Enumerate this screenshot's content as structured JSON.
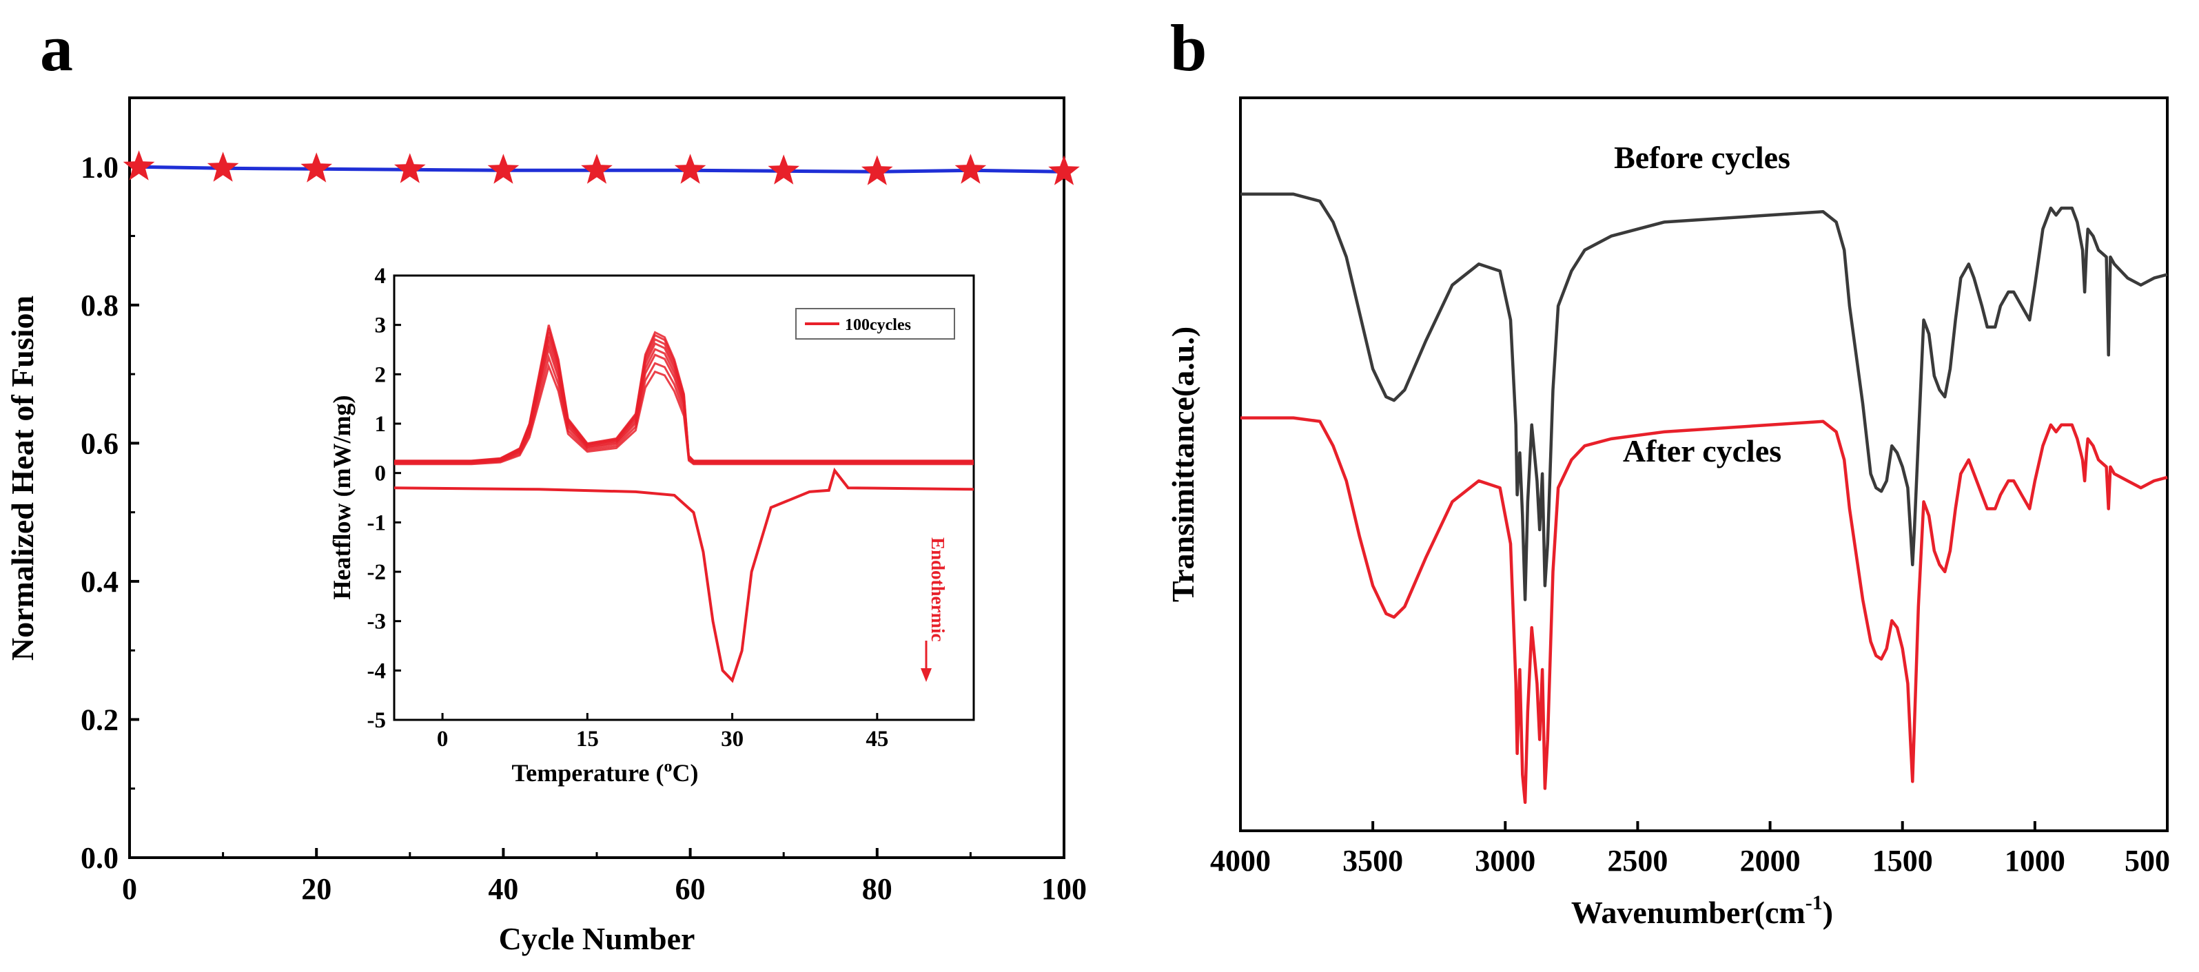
{
  "chart_data": [
    {
      "panel": "a",
      "type": "line",
      "xlabel": "Cycle Number",
      "ylabel": "Normalized Heat of Fusion",
      "xlim": [
        0,
        100
      ],
      "ylim": [
        0,
        1.1
      ],
      "xticks": [
        "0",
        "20",
        "40",
        "60",
        "80",
        "100"
      ],
      "yticks": [
        "0.0",
        "0.2",
        "0.4",
        "0.6",
        "0.8",
        "1.0"
      ],
      "series": [
        {
          "name": "normalized heat of fusion",
          "x": [
            1,
            10,
            20,
            30,
            40,
            50,
            60,
            70,
            80,
            90,
            100
          ],
          "values": [
            1.0,
            0.998,
            0.997,
            0.996,
            0.995,
            0.995,
            0.995,
            0.994,
            0.993,
            0.995,
            0.993
          ],
          "line_color": "#1f2fd6",
          "marker_color": "#e8202a"
        }
      ],
      "inset": {
        "type": "line",
        "xlabel": "Temperature",
        "xlabel_unit": "C",
        "xlabel_sup": "o",
        "ylabel": "Heatflow (mW/mg)",
        "xlim": [
          -5,
          55
        ],
        "ylim": [
          -5,
          4
        ],
        "xticks": [
          "0",
          "15",
          "30",
          "45"
        ],
        "yticks": [
          "-5",
          "-4",
          "-3",
          "-2",
          "-1",
          "0",
          "1",
          "2",
          "3",
          "4"
        ],
        "legend": "100cycles",
        "annotation": "Endothermic",
        "color": "#e8202a",
        "cooling": {
          "x": [
            -5,
            3,
            6,
            8,
            9,
            10,
            11,
            12,
            13,
            15,
            18,
            20,
            21,
            22,
            23,
            24,
            25,
            25.5,
            26,
            55
          ],
          "values": [
            0.25,
            0.25,
            0.3,
            0.5,
            1.0,
            2.0,
            3.0,
            2.3,
            1.1,
            0.6,
            0.7,
            1.2,
            2.4,
            2.85,
            2.75,
            2.3,
            1.6,
            0.35,
            0.25,
            0.25
          ]
        },
        "heating": {
          "x": [
            -5,
            10,
            20,
            24,
            26,
            27,
            28,
            29,
            30,
            31,
            32,
            34,
            38,
            40,
            40.6,
            42,
            55
          ],
          "values": [
            -0.3,
            -0.33,
            -0.38,
            -0.45,
            -0.8,
            -1.6,
            -3.0,
            -4.0,
            -4.2,
            -3.6,
            -2.0,
            -0.7,
            -0.38,
            -0.35,
            0.05,
            -0.3,
            -0.33
          ]
        }
      }
    },
    {
      "panel": "b",
      "type": "line",
      "xlabel": "Wavenumber(cm",
      "xlabel_sup": "-1",
      "xlabel_close": ")",
      "ylabel": "Transimittance(a.u.)",
      "xlim": [
        4000,
        500
      ],
      "xticks": [
        "4000",
        "3500",
        "3000",
        "2500",
        "2000",
        "1500",
        "1000",
        "500"
      ],
      "series": [
        {
          "name": "Before cycles",
          "color": "#3a3a3a",
          "x": [
            4000,
            3800,
            3700,
            3650,
            3600,
            3550,
            3500,
            3450,
            3420,
            3380,
            3300,
            3200,
            3100,
            3020,
            2980,
            2960,
            2955,
            2945,
            2935,
            2925,
            2915,
            2900,
            2880,
            2870,
            2860,
            2850,
            2840,
            2820,
            2800,
            2750,
            2700,
            2600,
            2400,
            2000,
            1800,
            1750,
            1720,
            1700,
            1650,
            1620,
            1600,
            1580,
            1560,
            1540,
            1520,
            1500,
            1480,
            1470,
            1462,
            1455,
            1440,
            1420,
            1400,
            1380,
            1360,
            1340,
            1320,
            1300,
            1280,
            1250,
            1230,
            1200,
            1180,
            1150,
            1130,
            1100,
            1080,
            1050,
            1020,
            1000,
            970,
            940,
            920,
            900,
            880,
            860,
            840,
            820,
            812,
            805,
            800,
            780,
            760,
            730,
            722,
            715,
            700,
            650,
            600,
            550,
            500
          ],
          "values": [
            88,
            88,
            87,
            84,
            79,
            71,
            63,
            59,
            58.5,
            60,
            67,
            75,
            78,
            77,
            70,
            55,
            45,
            51,
            42,
            30,
            44,
            55,
            47,
            40,
            48,
            32,
            38,
            60,
            72,
            77,
            80,
            82,
            84,
            85,
            85.5,
            84,
            80,
            72,
            58,
            48,
            46,
            45.5,
            47,
            52,
            51,
            49,
            46,
            40,
            35,
            40,
            53,
            70,
            68,
            62,
            60,
            59,
            63,
            70,
            76,
            78,
            76,
            72,
            69,
            69,
            72,
            74,
            74,
            72,
            70,
            75,
            83,
            86,
            85,
            86,
            86,
            86,
            84,
            80,
            74,
            80,
            83,
            82,
            80,
            79,
            65,
            79,
            78,
            76,
            75,
            76,
            76.5
          ]
        },
        {
          "name": "After cycles",
          "color": "#e8202a",
          "x": [
            4000,
            3800,
            3700,
            3650,
            3600,
            3550,
            3500,
            3450,
            3420,
            3380,
            3300,
            3200,
            3100,
            3020,
            2980,
            2960,
            2955,
            2945,
            2935,
            2925,
            2915,
            2900,
            2880,
            2870,
            2860,
            2850,
            2840,
            2820,
            2800,
            2750,
            2700,
            2600,
            2400,
            2000,
            1800,
            1750,
            1720,
            1700,
            1650,
            1620,
            1600,
            1580,
            1560,
            1540,
            1520,
            1500,
            1480,
            1470,
            1462,
            1455,
            1440,
            1420,
            1400,
            1380,
            1360,
            1340,
            1320,
            1300,
            1280,
            1250,
            1230,
            1200,
            1180,
            1150,
            1130,
            1100,
            1080,
            1050,
            1020,
            1000,
            970,
            940,
            920,
            900,
            880,
            860,
            840,
            820,
            812,
            805,
            800,
            780,
            760,
            730,
            722,
            715,
            700,
            650,
            600,
            550,
            500
          ],
          "values": [
            56,
            56,
            55.5,
            52,
            47,
            39,
            32,
            28,
            27.5,
            29,
            36,
            44,
            47,
            46,
            38,
            18,
            8,
            20,
            5,
            1,
            14,
            26,
            18,
            10,
            20,
            3,
            10,
            34,
            46,
            50,
            52,
            53,
            54,
            55,
            55.5,
            54,
            50,
            43,
            30,
            24,
            22,
            21.5,
            23,
            27,
            26,
            23,
            18,
            10,
            4,
            12,
            29,
            44,
            42,
            37,
            35,
            34,
            37,
            43,
            48,
            50,
            48,
            45,
            43,
            43,
            45,
            47,
            47,
            45,
            43,
            47,
            52,
            55,
            54,
            55,
            55,
            55,
            53,
            50,
            47,
            51,
            53,
            52,
            50,
            49,
            43,
            49,
            48,
            47,
            46,
            47,
            47.5
          ]
        }
      ]
    }
  ]
}
